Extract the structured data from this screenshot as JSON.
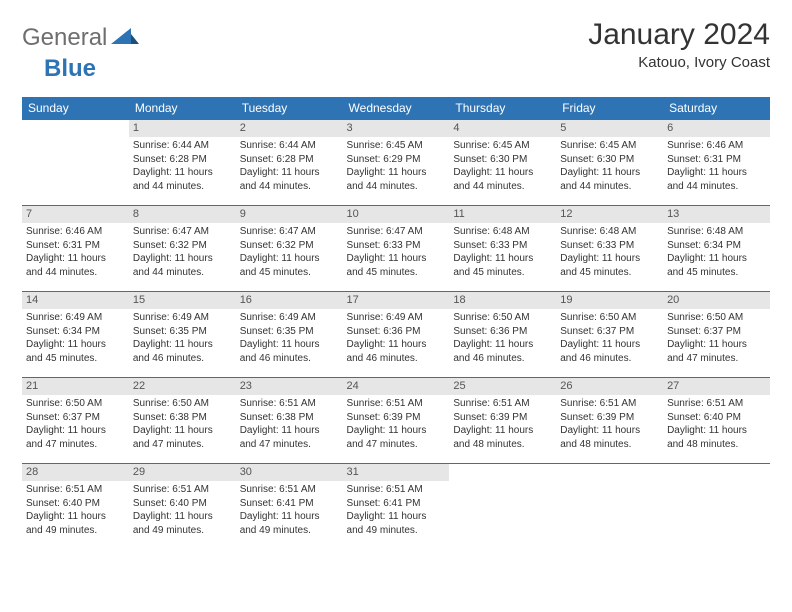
{
  "logo": {
    "general": "General",
    "blue": "Blue"
  },
  "title": "January 2024",
  "location": "Katouo, Ivory Coast",
  "colors": {
    "header_bg": "#2e74b5",
    "header_text": "#ffffff",
    "daynum_bg": "#e6e6e6",
    "grid_line": "#2e74b5",
    "logo_general": "#6e6e6e",
    "logo_blue": "#2e74b5"
  },
  "dayHeaders": [
    "Sunday",
    "Monday",
    "Tuesday",
    "Wednesday",
    "Thursday",
    "Friday",
    "Saturday"
  ],
  "firstWeekday": 1,
  "daysInMonth": 31,
  "days": {
    "1": {
      "sunrise": "6:44 AM",
      "sunset": "6:28 PM",
      "daylight": "11 hours and 44 minutes."
    },
    "2": {
      "sunrise": "6:44 AM",
      "sunset": "6:28 PM",
      "daylight": "11 hours and 44 minutes."
    },
    "3": {
      "sunrise": "6:45 AM",
      "sunset": "6:29 PM",
      "daylight": "11 hours and 44 minutes."
    },
    "4": {
      "sunrise": "6:45 AM",
      "sunset": "6:30 PM",
      "daylight": "11 hours and 44 minutes."
    },
    "5": {
      "sunrise": "6:45 AM",
      "sunset": "6:30 PM",
      "daylight": "11 hours and 44 minutes."
    },
    "6": {
      "sunrise": "6:46 AM",
      "sunset": "6:31 PM",
      "daylight": "11 hours and 44 minutes."
    },
    "7": {
      "sunrise": "6:46 AM",
      "sunset": "6:31 PM",
      "daylight": "11 hours and 44 minutes."
    },
    "8": {
      "sunrise": "6:47 AM",
      "sunset": "6:32 PM",
      "daylight": "11 hours and 44 minutes."
    },
    "9": {
      "sunrise": "6:47 AM",
      "sunset": "6:32 PM",
      "daylight": "11 hours and 45 minutes."
    },
    "10": {
      "sunrise": "6:47 AM",
      "sunset": "6:33 PM",
      "daylight": "11 hours and 45 minutes."
    },
    "11": {
      "sunrise": "6:48 AM",
      "sunset": "6:33 PM",
      "daylight": "11 hours and 45 minutes."
    },
    "12": {
      "sunrise": "6:48 AM",
      "sunset": "6:33 PM",
      "daylight": "11 hours and 45 minutes."
    },
    "13": {
      "sunrise": "6:48 AM",
      "sunset": "6:34 PM",
      "daylight": "11 hours and 45 minutes."
    },
    "14": {
      "sunrise": "6:49 AM",
      "sunset": "6:34 PM",
      "daylight": "11 hours and 45 minutes."
    },
    "15": {
      "sunrise": "6:49 AM",
      "sunset": "6:35 PM",
      "daylight": "11 hours and 46 minutes."
    },
    "16": {
      "sunrise": "6:49 AM",
      "sunset": "6:35 PM",
      "daylight": "11 hours and 46 minutes."
    },
    "17": {
      "sunrise": "6:49 AM",
      "sunset": "6:36 PM",
      "daylight": "11 hours and 46 minutes."
    },
    "18": {
      "sunrise": "6:50 AM",
      "sunset": "6:36 PM",
      "daylight": "11 hours and 46 minutes."
    },
    "19": {
      "sunrise": "6:50 AM",
      "sunset": "6:37 PM",
      "daylight": "11 hours and 46 minutes."
    },
    "20": {
      "sunrise": "6:50 AM",
      "sunset": "6:37 PM",
      "daylight": "11 hours and 47 minutes."
    },
    "21": {
      "sunrise": "6:50 AM",
      "sunset": "6:37 PM",
      "daylight": "11 hours and 47 minutes."
    },
    "22": {
      "sunrise": "6:50 AM",
      "sunset": "6:38 PM",
      "daylight": "11 hours and 47 minutes."
    },
    "23": {
      "sunrise": "6:51 AM",
      "sunset": "6:38 PM",
      "daylight": "11 hours and 47 minutes."
    },
    "24": {
      "sunrise": "6:51 AM",
      "sunset": "6:39 PM",
      "daylight": "11 hours and 47 minutes."
    },
    "25": {
      "sunrise": "6:51 AM",
      "sunset": "6:39 PM",
      "daylight": "11 hours and 48 minutes."
    },
    "26": {
      "sunrise": "6:51 AM",
      "sunset": "6:39 PM",
      "daylight": "11 hours and 48 minutes."
    },
    "27": {
      "sunrise": "6:51 AM",
      "sunset": "6:40 PM",
      "daylight": "11 hours and 48 minutes."
    },
    "28": {
      "sunrise": "6:51 AM",
      "sunset": "6:40 PM",
      "daylight": "11 hours and 49 minutes."
    },
    "29": {
      "sunrise": "6:51 AM",
      "sunset": "6:40 PM",
      "daylight": "11 hours and 49 minutes."
    },
    "30": {
      "sunrise": "6:51 AM",
      "sunset": "6:41 PM",
      "daylight": "11 hours and 49 minutes."
    },
    "31": {
      "sunrise": "6:51 AM",
      "sunset": "6:41 PM",
      "daylight": "11 hours and 49 minutes."
    }
  },
  "labels": {
    "sunrise": "Sunrise:",
    "sunset": "Sunset:",
    "daylight": "Daylight:"
  }
}
